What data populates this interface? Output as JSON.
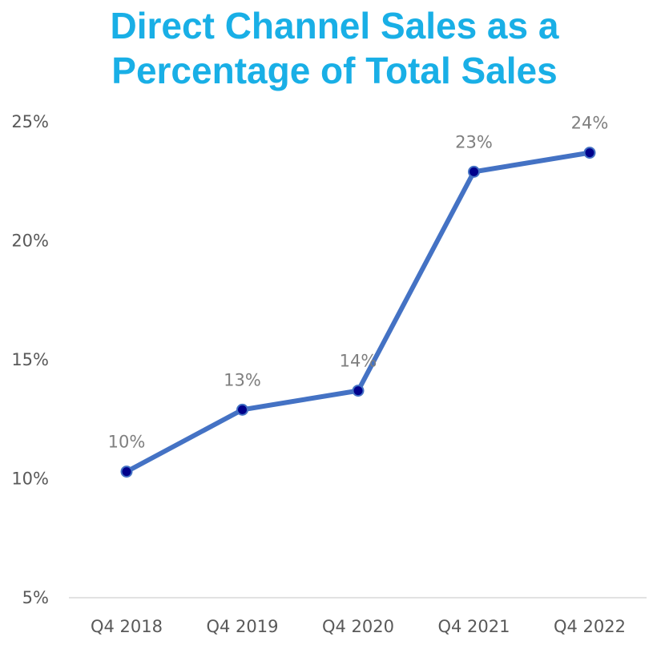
{
  "chart_data": {
    "type": "line",
    "title_lines": [
      "Direct Channel Sales as a",
      "Percentage of Total Sales"
    ],
    "title_color": "#19afe6",
    "categories": [
      "Q4 2018",
      "Q4 2019",
      "Q4 2020",
      "Q4 2021",
      "Q4 2022"
    ],
    "series": [
      {
        "values": [
          10.3,
          12.9,
          13.7,
          22.9,
          23.7
        ],
        "data_labels": [
          "10%",
          "13%",
          "14%",
          "23%",
          "24%"
        ],
        "line_color": "#4472c4",
        "marker_color": "#00008b"
      }
    ],
    "ylim": [
      5,
      25
    ],
    "yticks": [
      5,
      10,
      15,
      20,
      25
    ],
    "ytick_labels": [
      "5%",
      "10%",
      "15%",
      "20%",
      "25%"
    ],
    "grid": false,
    "xlabel": "",
    "ylabel": ""
  }
}
